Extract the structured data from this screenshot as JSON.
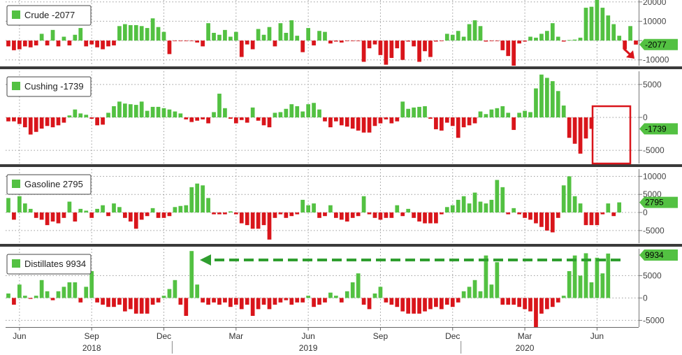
{
  "colors": {
    "positive": "#53c142",
    "negative": "#d9151b",
    "grid": "#9a9a9a",
    "separator": "#3a3a3a",
    "highlight_box": "#d9151b",
    "arrow": "#2f9e2f",
    "tag_text": "#000000"
  },
  "chart_data": [
    {
      "type": "bar",
      "legend": "Crude -2077",
      "last_value": -2077,
      "last_label": "-2077",
      "ylim": [
        -13000,
        21000
      ],
      "y_ticks": [
        20000,
        10000,
        0,
        -10000
      ],
      "y_tick_labels": [
        "20000",
        "10000",
        "",
        "-10000"
      ],
      "values": [
        -3000,
        -5000,
        -4500,
        -3000,
        -3500,
        -2500,
        3500,
        -2500,
        5500,
        -3000,
        2000,
        -2500,
        3000,
        6500,
        -3000,
        -2000,
        -3500,
        -4500,
        -3000,
        -2500,
        7500,
        8500,
        8000,
        8000,
        7500,
        6500,
        11500,
        7000,
        4500,
        -7000,
        -300,
        -200,
        -200,
        -200,
        -1000,
        -3000,
        9000,
        4000,
        3000,
        5500,
        2000,
        4500,
        -8500,
        -2000,
        -4500,
        6000,
        3000,
        7000,
        -3000,
        9000,
        4000,
        10500,
        2500,
        -6000,
        6500,
        -2500,
        5000,
        4500,
        -1500,
        -500,
        -1000,
        -200,
        -100,
        -200,
        -11000,
        -4000,
        -2000,
        -7500,
        -12500,
        -9000,
        -4000,
        -10000,
        -500,
        -3000,
        -11000,
        -5500,
        -8500,
        -500,
        -300,
        3500,
        3000,
        5000,
        2000,
        8500,
        10500,
        7500,
        -500,
        -300,
        -200,
        -5000,
        -8000,
        -13000,
        -1500,
        -500,
        2000,
        1500,
        3500,
        5000,
        9000,
        2000,
        -500,
        300,
        500,
        1500,
        17000,
        17500,
        22000,
        17000,
        13000,
        8500,
        2500,
        -4500,
        7500,
        -2077
      ]
    },
    {
      "type": "bar",
      "legend": "Cushing -1739",
      "last_value": -1739,
      "last_label": "-1739",
      "ylim": [
        -7000,
        7000
      ],
      "y_ticks": [
        5000,
        0,
        -5000
      ],
      "y_tick_labels": [
        "5000",
        "0",
        "-5000"
      ],
      "values": [
        -600,
        -600,
        -1000,
        -1500,
        -2600,
        -2200,
        -1700,
        -1300,
        -1500,
        -1200,
        -800,
        300,
        1200,
        600,
        400,
        -200,
        -1200,
        -1100,
        700,
        1700,
        2400,
        2100,
        2000,
        1900,
        2400,
        1000,
        1600,
        1600,
        1400,
        1200,
        900,
        600,
        -300,
        -700,
        -500,
        -300,
        -900,
        800,
        3600,
        1400,
        -200,
        -900,
        -400,
        -800,
        1500,
        -500,
        -1200,
        -1500,
        700,
        800,
        1300,
        2000,
        1700,
        900,
        2000,
        2200,
        1200,
        -600,
        -1500,
        -600,
        -1200,
        -1400,
        -1700,
        -2000,
        -2300,
        -2300,
        -1300,
        -900,
        -300,
        -900,
        -600,
        2400,
        1300,
        1500,
        1600,
        1700,
        -200,
        -1800,
        -2000,
        -800,
        -1300,
        -3100,
        -1500,
        -1200,
        -900,
        900,
        500,
        1200,
        1400,
        1700,
        700,
        -1900,
        700,
        1000,
        800,
        4400,
        6500,
        6000,
        5500,
        4000,
        1800,
        -3100,
        -4000,
        -5500,
        -3200,
        -1739
      ]
    },
    {
      "type": "bar",
      "legend": "Gasoline 2795",
      "last_value": 2795,
      "last_label": "2795",
      "ylim": [
        -8500,
        12000
      ],
      "y_ticks": [
        10000,
        5000,
        0,
        -5000
      ],
      "y_tick_labels": [
        "10000",
        "5000",
        "0",
        "-5000"
      ],
      "values": [
        4000,
        -2000,
        4500,
        2500,
        1000,
        -1500,
        -2000,
        -3500,
        -2500,
        -3000,
        -1500,
        3000,
        -2500,
        1000,
        500,
        -1500,
        1000,
        2000,
        -1000,
        2500,
        1500,
        -1500,
        -2500,
        -4500,
        -2000,
        -1000,
        1200,
        -1500,
        -1500,
        -1000,
        1500,
        1800,
        2000,
        7000,
        8000,
        7500,
        4000,
        -500,
        -500,
        -500,
        300,
        -500,
        -3000,
        -3500,
        -4500,
        -4500,
        -3500,
        -7500,
        -1500,
        -500,
        -1500,
        -1000,
        -500,
        3500,
        2000,
        2500,
        -1500,
        -1000,
        2000,
        -1500,
        -2000,
        -2500,
        -1500,
        -1000,
        4500,
        -500,
        -1500,
        -2000,
        -1500,
        -1500,
        2000,
        -1000,
        1000,
        -1500,
        -2500,
        -3000,
        -3000,
        -3000,
        -500,
        1500,
        2000,
        3500,
        4500,
        2500,
        5500,
        3000,
        2500,
        3500,
        9000,
        7000,
        -500,
        1200,
        -500,
        -1500,
        -2000,
        -3000,
        -4000,
        -5000,
        -5500,
        -1500,
        7500,
        10000,
        4500,
        2500,
        -3500,
        -3500,
        -3500,
        -500,
        2500,
        -1000,
        2795
      ]
    },
    {
      "type": "bar",
      "legend": "Distillates 9934",
      "last_value": 9934,
      "last_label": "9934",
      "ylim": [
        -6500,
        11000
      ],
      "y_ticks": [
        5000,
        0,
        -5000
      ],
      "y_tick_labels": [
        "5000",
        "0",
        "-5000"
      ],
      "values": [
        1000,
        -1500,
        3000,
        500,
        -200,
        500,
        4000,
        1500,
        -500,
        1500,
        2500,
        3500,
        3500,
        -1000,
        2500,
        6000,
        -1000,
        -1500,
        -2000,
        -2000,
        -1500,
        -3000,
        -2500,
        -3500,
        -3500,
        -3500,
        -1500,
        -1000,
        500,
        2000,
        4000,
        -1500,
        -4000,
        10500,
        3000,
        -1000,
        -1500,
        -1000,
        -1500,
        -1000,
        -2000,
        -1500,
        -2500,
        -1500,
        -4000,
        -2500,
        -1500,
        -2500,
        -1500,
        -1000,
        -500,
        -1500,
        -1000,
        -1000,
        500,
        -2000,
        -1500,
        -1000,
        1200,
        500,
        -1000,
        1500,
        3500,
        5500,
        -1500,
        -2500,
        1000,
        2500,
        -1000,
        -1500,
        -2000,
        -3000,
        -3500,
        -3500,
        -3500,
        -3000,
        -2500,
        -2000,
        -2500,
        -1500,
        -2000,
        -1000,
        1500,
        2500,
        4000,
        1500,
        9500,
        3000,
        8000,
        -1500,
        -1500,
        -1500,
        -2000,
        -2500,
        -3000,
        -6500,
        -3500,
        -2500,
        -2000,
        -1000,
        500,
        6000,
        9500,
        5000,
        10000,
        3500,
        9000,
        5500,
        9934
      ]
    }
  ],
  "x_axis": {
    "month_ticks": [
      {
        "label": "Jun",
        "col": 2
      },
      {
        "label": "Sep",
        "col": 15
      },
      {
        "label": "Dec",
        "col": 28
      },
      {
        "label": "Mar",
        "col": 41
      },
      {
        "label": "Jun",
        "col": 54
      },
      {
        "label": "Sep",
        "col": 67
      },
      {
        "label": "Dec",
        "col": 80
      },
      {
        "label": "Mar",
        "col": 93
      },
      {
        "label": "Jun",
        "col": 106
      }
    ],
    "year_labels": [
      {
        "label": "2018",
        "col": 15
      },
      {
        "label": "2019",
        "col": 54
      },
      {
        "label": "2020",
        "col": 93
      }
    ],
    "year_dividers": [
      30,
      82
    ]
  },
  "annotations": {
    "crude_red_arrow": "pointing-down-right",
    "cushing_highlight_box": "last-weeks-drawdown",
    "distillates_green_arrow": "dashed-left"
  }
}
